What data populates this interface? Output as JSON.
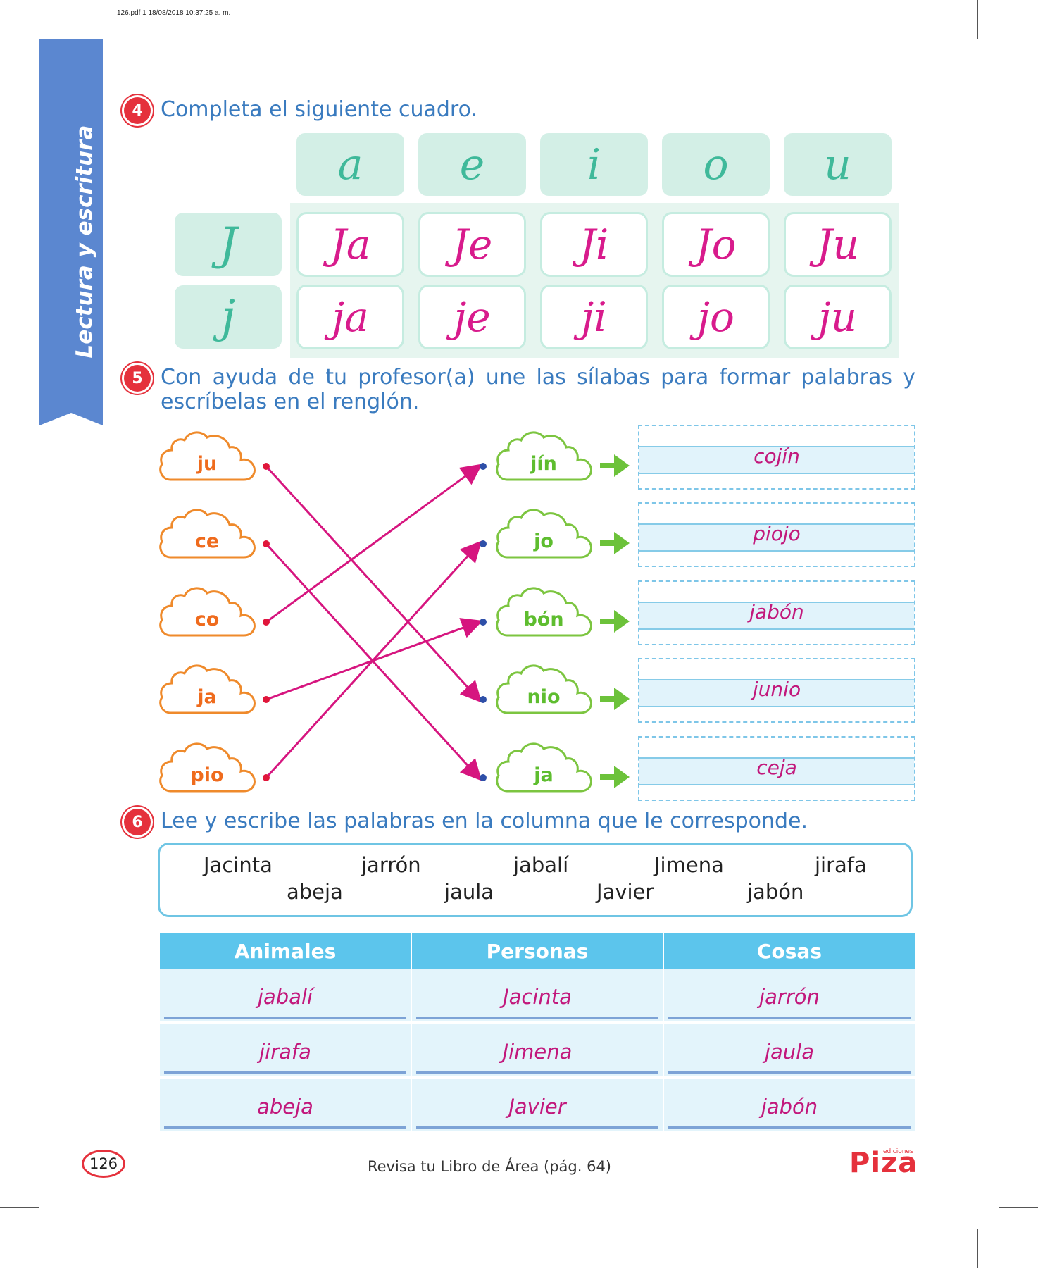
{
  "print_header": "126.pdf   1   18/08/2018   10:37:25 a. m.",
  "side_tab": {
    "label": "Lectura y escritura",
    "color": "#5b87d0"
  },
  "exercise4": {
    "number": "4",
    "instruction": "Completa el siguiente cuadro.",
    "vowels": [
      "a",
      "e",
      "i",
      "o",
      "u"
    ],
    "rows": [
      {
        "head": "J",
        "cells": [
          "Ja",
          "Je",
          "Ji",
          "Jo",
          "Ju"
        ]
      },
      {
        "head": "j",
        "cells": [
          "ja",
          "je",
          "ji",
          "jo",
          "ju"
        ]
      }
    ]
  },
  "exercise5": {
    "number": "5",
    "instruction_line1": "Con ayuda de tu profesor(a) une las sílabas para formar palabras y",
    "instruction_line2": "escríbelas en el renglón.",
    "left_syllables": [
      "ju",
      "ce",
      "co",
      "ja",
      "pio"
    ],
    "right_syllables": [
      "jín",
      "jo",
      "bón",
      "nio",
      "ja"
    ],
    "answers": [
      "cojín",
      "piojo",
      "jabón",
      "junio",
      "ceja"
    ],
    "connections": [
      [
        0,
        3
      ],
      [
        1,
        4
      ],
      [
        2,
        0
      ],
      [
        3,
        2
      ],
      [
        4,
        1
      ]
    ]
  },
  "exercise6": {
    "number": "6",
    "instruction": "Lee y escribe las palabras en la columna que le corresponde.",
    "word_bank_row1": [
      "Jacinta",
      "jarrón",
      "jabalí",
      "Jimena",
      "jirafa"
    ],
    "word_bank_row2": [
      "abeja",
      "jaula",
      "Javier",
      "jabón"
    ],
    "columns": [
      {
        "header": "Animales",
        "items": [
          "jabalí",
          "jirafa",
          "abeja"
        ]
      },
      {
        "header": "Personas",
        "items": [
          "Jacinta",
          "Jimena",
          "Javier"
        ]
      },
      {
        "header": "Cosas",
        "items": [
          "jarrón",
          "jaula",
          "jabón"
        ]
      }
    ]
  },
  "footer": {
    "page_number": "126",
    "note": "Revisa tu Libro de Área (pág. 64)",
    "brand": "Piza",
    "brand_sub": "ediciones"
  },
  "colors": {
    "accent_red": "#e5313c",
    "instruction_blue": "#3a7bbf",
    "answer_magenta": "#c2187c",
    "line_magenta": "#d6157f"
  }
}
